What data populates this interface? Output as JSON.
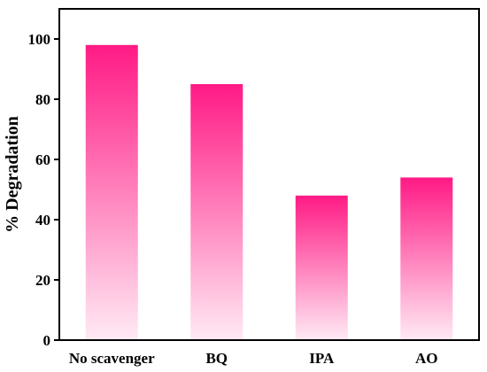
{
  "chart_data": {
    "type": "bar",
    "categories": [
      "No scavenger",
      "BQ",
      "IPA",
      "AO"
    ],
    "values": [
      98,
      85,
      48,
      54
    ],
    "title": "",
    "xlabel": "",
    "ylabel": "% Degradation",
    "ylim": [
      0,
      110
    ],
    "yticks": [
      0,
      20,
      40,
      60,
      80,
      100
    ],
    "grid": false,
    "legend": "none",
    "bar_color_top": "#ff1a85",
    "bar_color_bottom": "#ffeaf4"
  }
}
